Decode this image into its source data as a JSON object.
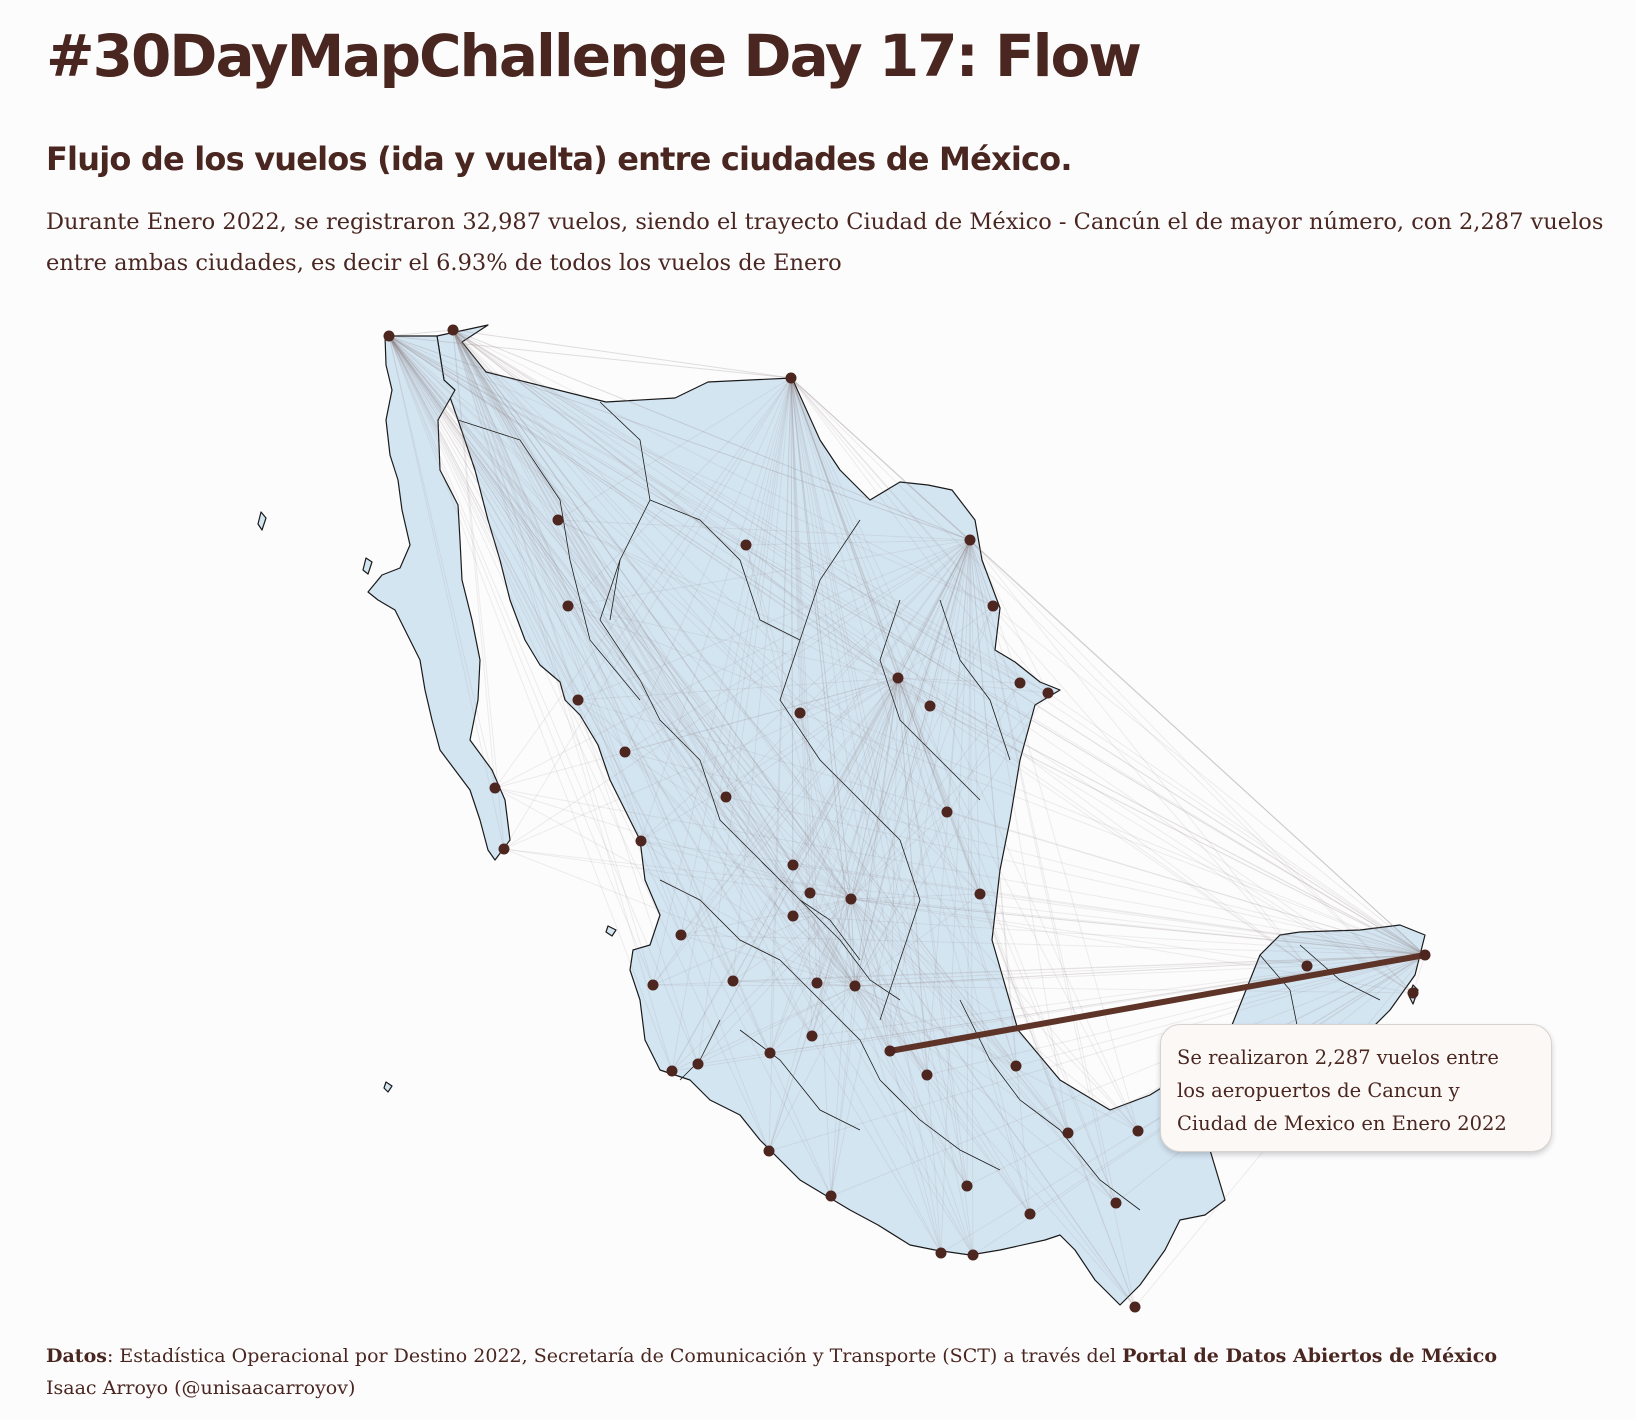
{
  "header": {
    "title": "#30DayMapChallenge Day 17: Flow",
    "subtitle": "Flujo de los vuelos (ida y vuelta) entre ciudades de México.",
    "description": "Durante Enero 2022, se registraron 32,987 vuelos, siendo el trayecto Ciudad de México - Cancún el de mayor número, con 2,287 vuelos entre ambas ciudades, es decir el 6.93% de todos los vuelos de Enero"
  },
  "annotation": {
    "line1": "Se realizaron 2,287 vuelos entre",
    "line2": "los aeropuertos de Cancun y",
    "line3": "Ciudad de Mexico en Enero 2022"
  },
  "highlighted_route": {
    "from": "Ciudad de Mexico",
    "to": "Cancun",
    "flights": 2287
  },
  "footer": {
    "source_label": "Datos",
    "source_text": ": Estadística Operacional por Destino 2022, Secretaría de Comunicación y Transporte (SCT) a través del ",
    "source_portal": "Portal de Datos Abiertos de México",
    "author": "Isaac Arroyo (@unisaacarroyov)"
  },
  "colors": {
    "land": "#d4e5f2",
    "border": "#1a1a1a",
    "airport": "#4e2620",
    "highlight_route": "#5e3428",
    "flow_lines": "#e4e0e0",
    "text": "#4a2620",
    "background": "#fcfcfd"
  }
}
